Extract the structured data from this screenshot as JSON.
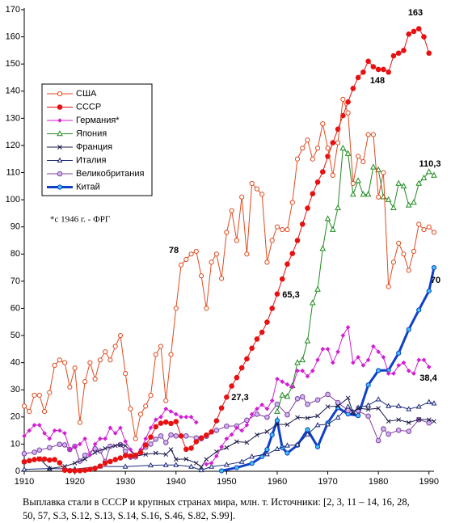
{
  "chart_data": {
    "type": "line",
    "caption": "Выплавка стали в СССР и крупных странах мира, млн. т. Источники: [2, 3, 11 – 14, 16, 28, 50, 57, S.3, S.12, S.13, S.14, S.16, S.46, S.82, S.99].",
    "note": "*с 1946 г. - ФРГ",
    "annotations": [
      "163",
      "148",
      "110,3",
      "78",
      "65,3",
      "27,3",
      "70",
      "38,4"
    ],
    "xlim": [
      1910,
      1991
    ],
    "xticks": [
      1910,
      1920,
      1930,
      1940,
      1950,
      1960,
      1970,
      1980,
      1990
    ],
    "ylim": [
      0,
      170
    ],
    "yticks": [
      0,
      10,
      20,
      30,
      40,
      50,
      60,
      70,
      80,
      90,
      100,
      110,
      120,
      130,
      140,
      150,
      160,
      170
    ],
    "grid": false,
    "series": [
      {
        "name": "США",
        "color": "#e04a1e",
        "marker": "circle-open",
        "x": [
          1910,
          1911,
          1912,
          1913,
          1914,
          1915,
          1916,
          1917,
          1918,
          1919,
          1920,
          1921,
          1922,
          1923,
          1924,
          1925,
          1926,
          1927,
          1928,
          1929,
          1930,
          1931,
          1932,
          1933,
          1934,
          1935,
          1936,
          1937,
          1938,
          1939,
          1940,
          1941,
          1942,
          1943,
          1944,
          1945,
          1946,
          1947,
          1948,
          1949,
          1950,
          1951,
          1952,
          1953,
          1954,
          1955,
          1956,
          1957,
          1958,
          1959,
          1960,
          1961,
          1962,
          1963,
          1964,
          1965,
          1966,
          1967,
          1968,
          1969,
          1970,
          1971,
          1972,
          1973,
          1974,
          1975,
          1976,
          1977,
          1978,
          1979,
          1980,
          1981,
          1982,
          1983,
          1984,
          1985,
          1986,
          1987,
          1988,
          1989,
          1990,
          1991
        ],
        "values": [
          24,
          22,
          28,
          28,
          22,
          29,
          39,
          41,
          40,
          31,
          38,
          18,
          33,
          40,
          34,
          41,
          44,
          41,
          46,
          50,
          36,
          23,
          12,
          21,
          24,
          28,
          43,
          46,
          26,
          43,
          60,
          76,
          78,
          80,
          81,
          72,
          60,
          77,
          80,
          71,
          88,
          96,
          85,
          101,
          80,
          106,
          104,
          102,
          77,
          85,
          90,
          89,
          89,
          99,
          115,
          119,
          122,
          115,
          119,
          128,
          119,
          109,
          121,
          137,
          132,
          106,
          116,
          114,
          124,
          124,
          101,
          110,
          68,
          77,
          84,
          80,
          74,
          81,
          91,
          89,
          90,
          88
        ]
      },
      {
        "name": "СССР",
        "color": "#e81010",
        "marker": "circle-filled",
        "x": [
          1910,
          1911,
          1912,
          1913,
          1914,
          1915,
          1916,
          1917,
          1918,
          1919,
          1920,
          1921,
          1922,
          1923,
          1924,
          1925,
          1926,
          1927,
          1928,
          1929,
          1930,
          1931,
          1932,
          1933,
          1934,
          1935,
          1936,
          1937,
          1938,
          1939,
          1940,
          1941,
          1942,
          1943,
          1944,
          1945,
          1946,
          1947,
          1948,
          1949,
          1950,
          1951,
          1952,
          1953,
          1954,
          1955,
          1956,
          1957,
          1958,
          1959,
          1960,
          1961,
          1962,
          1963,
          1964,
          1965,
          1966,
          1967,
          1968,
          1969,
          1970,
          1971,
          1972,
          1973,
          1974,
          1975,
          1976,
          1977,
          1978,
          1979,
          1980,
          1981,
          1982,
          1983,
          1984,
          1985,
          1986,
          1987,
          1988,
          1989,
          1990
        ],
        "values": [
          3.5,
          3.9,
          4.3,
          4.5,
          4.5,
          4.1,
          4.3,
          3.1,
          0.4,
          0.2,
          0.2,
          0.2,
          0.4,
          0.7,
          1.1,
          1.9,
          3,
          3.6,
          4.3,
          4.9,
          5.8,
          5.6,
          5.9,
          6.9,
          9.7,
          12.6,
          16.4,
          17.7,
          18.1,
          17.6,
          18.3,
          13,
          8.1,
          8.5,
          10.9,
          12.3,
          13.3,
          14.5,
          18.6,
          23.3,
          27.3,
          31.4,
          34.5,
          38.1,
          41.4,
          45.3,
          48.7,
          51.2,
          54.9,
          60,
          65.3,
          70.8,
          76.3,
          80.2,
          85,
          91,
          96.9,
          102.2,
          106.5,
          110.3,
          116,
          121,
          126,
          131,
          136,
          141,
          145,
          147,
          151,
          149,
          148,
          148,
          147,
          153,
          154,
          155,
          161,
          162,
          163,
          160,
          154
        ]
      },
      {
        "name": "Германия*",
        "color": "#d21ed2",
        "marker": "diamond",
        "x": [
          1910,
          1911,
          1912,
          1913,
          1914,
          1915,
          1916,
          1917,
          1918,
          1919,
          1920,
          1921,
          1922,
          1923,
          1924,
          1925,
          1926,
          1927,
          1928,
          1929,
          1930,
          1931,
          1932,
          1933,
          1934,
          1935,
          1936,
          1937,
          1938,
          1939,
          1940,
          1941,
          1942,
          1943,
          1944,
          1945,
          1946,
          1947,
          1948,
          1949,
          1950,
          1951,
          1952,
          1953,
          1954,
          1955,
          1956,
          1957,
          1958,
          1959,
          1960,
          1961,
          1962,
          1963,
          1964,
          1965,
          1966,
          1967,
          1968,
          1969,
          1970,
          1971,
          1972,
          1973,
          1974,
          1975,
          1976,
          1977,
          1978,
          1979,
          1980,
          1981,
          1982,
          1983,
          1984,
          1985,
          1986,
          1987,
          1988,
          1989,
          1990
        ],
        "values": [
          13,
          15,
          17,
          17,
          14,
          12,
          15,
          15,
          14,
          8,
          9,
          10,
          12,
          6,
          10,
          12,
          12,
          16,
          14,
          16,
          11,
          8,
          6,
          8,
          12,
          16,
          19,
          20,
          23,
          22,
          21,
          20,
          20,
          20,
          18,
          null,
          2.6,
          3,
          5.6,
          9,
          12,
          13.5,
          16,
          15,
          17,
          21,
          23,
          24.5,
          23,
          26,
          34,
          33,
          32,
          31,
          37,
          37,
          35,
          37,
          41,
          45,
          45,
          40,
          44,
          50,
          53,
          40,
          42,
          39,
          41,
          46,
          44,
          42,
          36,
          36,
          39,
          40,
          37,
          36,
          41,
          41,
          38.4
        ]
      },
      {
        "name": "Япония",
        "color": "#1f8a1f",
        "marker": "triangle-open",
        "x": [
          1960,
          1961,
          1962,
          1963,
          1964,
          1965,
          1966,
          1967,
          1968,
          1969,
          1970,
          1971,
          1972,
          1973,
          1974,
          1975,
          1976,
          1977,
          1978,
          1979,
          1980,
          1981,
          1982,
          1983,
          1984,
          1985,
          1986,
          1987,
          1988,
          1989,
          1990,
          1991
        ],
        "values": [
          22,
          28,
          27.5,
          31.5,
          40,
          41,
          48,
          62,
          67,
          82,
          93,
          89,
          97,
          119,
          117,
          102,
          107,
          102,
          102,
          112,
          111,
          101,
          100,
          97,
          106,
          105,
          98,
          99,
          106,
          108,
          110.3,
          109
        ]
      },
      {
        "name": "Франция",
        "color": "#1a1a4a",
        "marker": "cross",
        "x": [
          1910,
          1913,
          1915,
          1918,
          1920,
          1922,
          1924,
          1926,
          1928,
          1929,
          1930,
          1932,
          1934,
          1936,
          1938,
          1939,
          1940,
          1942,
          1944,
          1945,
          1946,
          1948,
          1950,
          1952,
          1954,
          1956,
          1958,
          1960,
          1962,
          1964,
          1966,
          1968,
          1970,
          1972,
          1974,
          1975,
          1976,
          1978,
          1980,
          1982,
          1984,
          1986,
          1988,
          1990,
          1991
        ],
        "values": [
          3.4,
          4.7,
          1,
          1.8,
          3,
          4.5,
          6.9,
          8.4,
          9.4,
          9.7,
          9.4,
          5.6,
          6.2,
          6.7,
          6.2,
          8,
          4.4,
          4.5,
          3,
          1.6,
          4.4,
          7.2,
          8.7,
          10.9,
          10.6,
          13.4,
          14.6,
          17.3,
          17.2,
          19.8,
          19.6,
          20.4,
          23.8,
          24,
          27,
          21.5,
          23.2,
          22.8,
          23.2,
          18.4,
          19,
          17.9,
          19.1,
          19,
          18.4
        ]
      },
      {
        "name": "Италия",
        "color": "#1c2a78",
        "marker": "triangle-filled",
        "x": [
          1910,
          1915,
          1920,
          1925,
          1930,
          1935,
          1938,
          1940,
          1943,
          1945,
          1947,
          1950,
          1953,
          1955,
          1958,
          1960,
          1962,
          1964,
          1966,
          1968,
          1970,
          1972,
          1974,
          1975,
          1976,
          1978,
          1980,
          1982,
          1984,
          1986,
          1988,
          1990,
          1991
        ],
        "values": [
          0.7,
          1,
          0.8,
          1.8,
          1.7,
          2.2,
          2.3,
          2.3,
          1.7,
          0.4,
          1.7,
          2.4,
          3.5,
          5.4,
          6.3,
          8.2,
          9.5,
          9.8,
          13.6,
          17,
          17.3,
          19.8,
          23.8,
          21.8,
          23.4,
          24.3,
          26.5,
          24,
          24,
          22.9,
          23.8,
          25.5,
          25
        ]
      },
      {
        "name": "Великобритания",
        "color": "#8040a0",
        "marker": "circle-lavender",
        "x": [
          1910,
          1912,
          1913,
          1915,
          1917,
          1918,
          1919,
          1920,
          1921,
          1922,
          1924,
          1925,
          1926,
          1927,
          1929,
          1930,
          1931,
          1932,
          1934,
          1935,
          1936,
          1937,
          1938,
          1939,
          1940,
          1942,
          1944,
          1945,
          1946,
          1948,
          1950,
          1952,
          1954,
          1956,
          1958,
          1960,
          1962,
          1964,
          1965,
          1966,
          1968,
          1970,
          1972,
          1974,
          1976,
          1978,
          1980,
          1981,
          1982,
          1984,
          1986,
          1988,
          1990
        ],
        "values": [
          6.5,
          7,
          7.8,
          8.7,
          9.9,
          9.7,
          8,
          9.2,
          3.7,
          5.9,
          8.3,
          7.5,
          3.6,
          9.2,
          9.8,
          7.4,
          5.2,
          5.3,
          8.9,
          10,
          11.8,
          13,
          10.6,
          13.4,
          13,
          13,
          12.3,
          12,
          12.9,
          15.1,
          16.6,
          16.7,
          18.8,
          21,
          19.9,
          24.7,
          20.8,
          26.7,
          27.4,
          24.7,
          26.3,
          28.3,
          25.3,
          22.4,
          22.3,
          20.3,
          11.3,
          15.6,
          13.7,
          15.1,
          14.7,
          19,
          17.8
        ]
      },
      {
        "name": "Китай",
        "color": "#1040c8",
        "marker": "circle-cyan",
        "x": [
          1949,
          1952,
          1955,
          1957,
          1958,
          1959,
          1960,
          1961,
          1962,
          1964,
          1966,
          1968,
          1970,
          1972,
          1974,
          1976,
          1978,
          1980,
          1982,
          1984,
          1986,
          1988,
          1990,
          1991
        ],
        "values": [
          0.16,
          1.35,
          2.9,
          5.4,
          8,
          13.4,
          18.7,
          8.7,
          6.7,
          9.6,
          15.3,
          9,
          17.8,
          23.4,
          21.1,
          20.5,
          31.8,
          37.1,
          37.2,
          43.5,
          52.2,
          59.4,
          66.4,
          75
        ]
      }
    ]
  }
}
